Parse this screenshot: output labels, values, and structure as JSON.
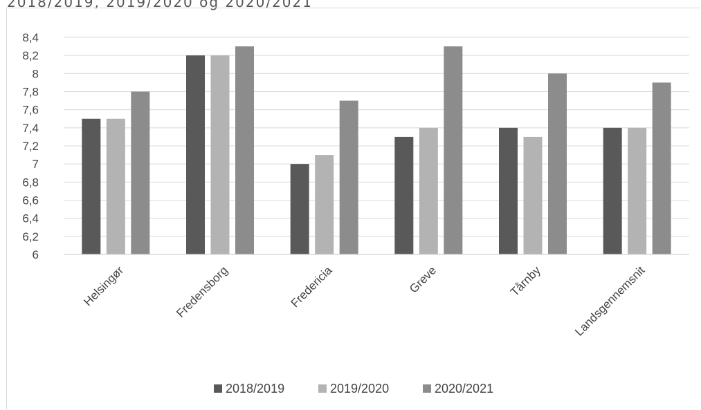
{
  "caption": "2018/2019, 2019/2020 og 2020/2021",
  "chart_data": {
    "type": "bar",
    "categories": [
      "Helsingør",
      "Fredensborg",
      "Fredericia",
      "Greve",
      "Tårnby",
      "Landsgennemsnit"
    ],
    "series": [
      {
        "name": "2018/2019",
        "values": [
          7.5,
          8.2,
          7.0,
          7.3,
          7.4,
          7.4
        ],
        "color": "#595959"
      },
      {
        "name": "2019/2020",
        "values": [
          7.5,
          8.2,
          7.1,
          7.4,
          7.3,
          7.4
        ],
        "color": "#b3b3b3"
      },
      {
        "name": "2020/2021",
        "values": [
          7.8,
          8.3,
          7.7,
          8.3,
          8.0,
          7.9
        ],
        "color": "#8c8c8c"
      }
    ],
    "ylim": [
      6,
      8.4
    ],
    "yticks": [
      "6",
      "6,2",
      "6,4",
      "6,6",
      "6,8",
      "7",
      "7,2",
      "7,4",
      "7,6",
      "7,8",
      "8",
      "8,2",
      "8,4"
    ],
    "grid": true,
    "legend": "bottom"
  }
}
